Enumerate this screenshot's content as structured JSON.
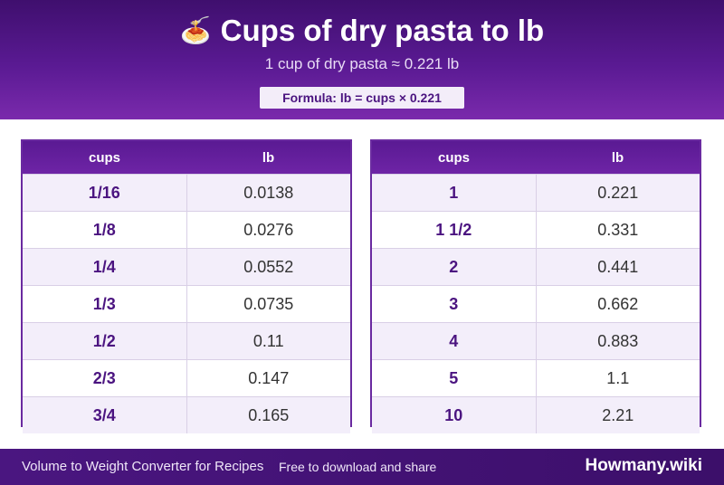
{
  "header": {
    "emoji": "🍝",
    "title": "Cups of dry pasta to lb",
    "subtitle": "1 cup of dry pasta ≈ 0.221 lb",
    "formula": "Formula: lb = cups × 0.221"
  },
  "tables": [
    {
      "col1": "cups",
      "col2": "lb",
      "rows": [
        {
          "cups": "1/16",
          "lb": "0.0138"
        },
        {
          "cups": "1/8",
          "lb": "0.0276"
        },
        {
          "cups": "1/4",
          "lb": "0.0552"
        },
        {
          "cups": "1/3",
          "lb": "0.0735"
        },
        {
          "cups": "1/2",
          "lb": "0.11"
        },
        {
          "cups": "2/3",
          "lb": "0.147"
        },
        {
          "cups": "3/4",
          "lb": "0.165"
        }
      ]
    },
    {
      "col1": "cups",
      "col2": "lb",
      "rows": [
        {
          "cups": "1",
          "lb": "0.221"
        },
        {
          "cups": "1 1/2",
          "lb": "0.331"
        },
        {
          "cups": "2",
          "lb": "0.441"
        },
        {
          "cups": "3",
          "lb": "0.662"
        },
        {
          "cups": "4",
          "lb": "0.883"
        },
        {
          "cups": "5",
          "lb": "1.1"
        },
        {
          "cups": "10",
          "lb": "2.21"
        }
      ]
    }
  ],
  "footer": {
    "left": "Volume to Weight Converter for Recipes",
    "middle": "Free to download and share",
    "brand": "Howmany.wiki"
  }
}
